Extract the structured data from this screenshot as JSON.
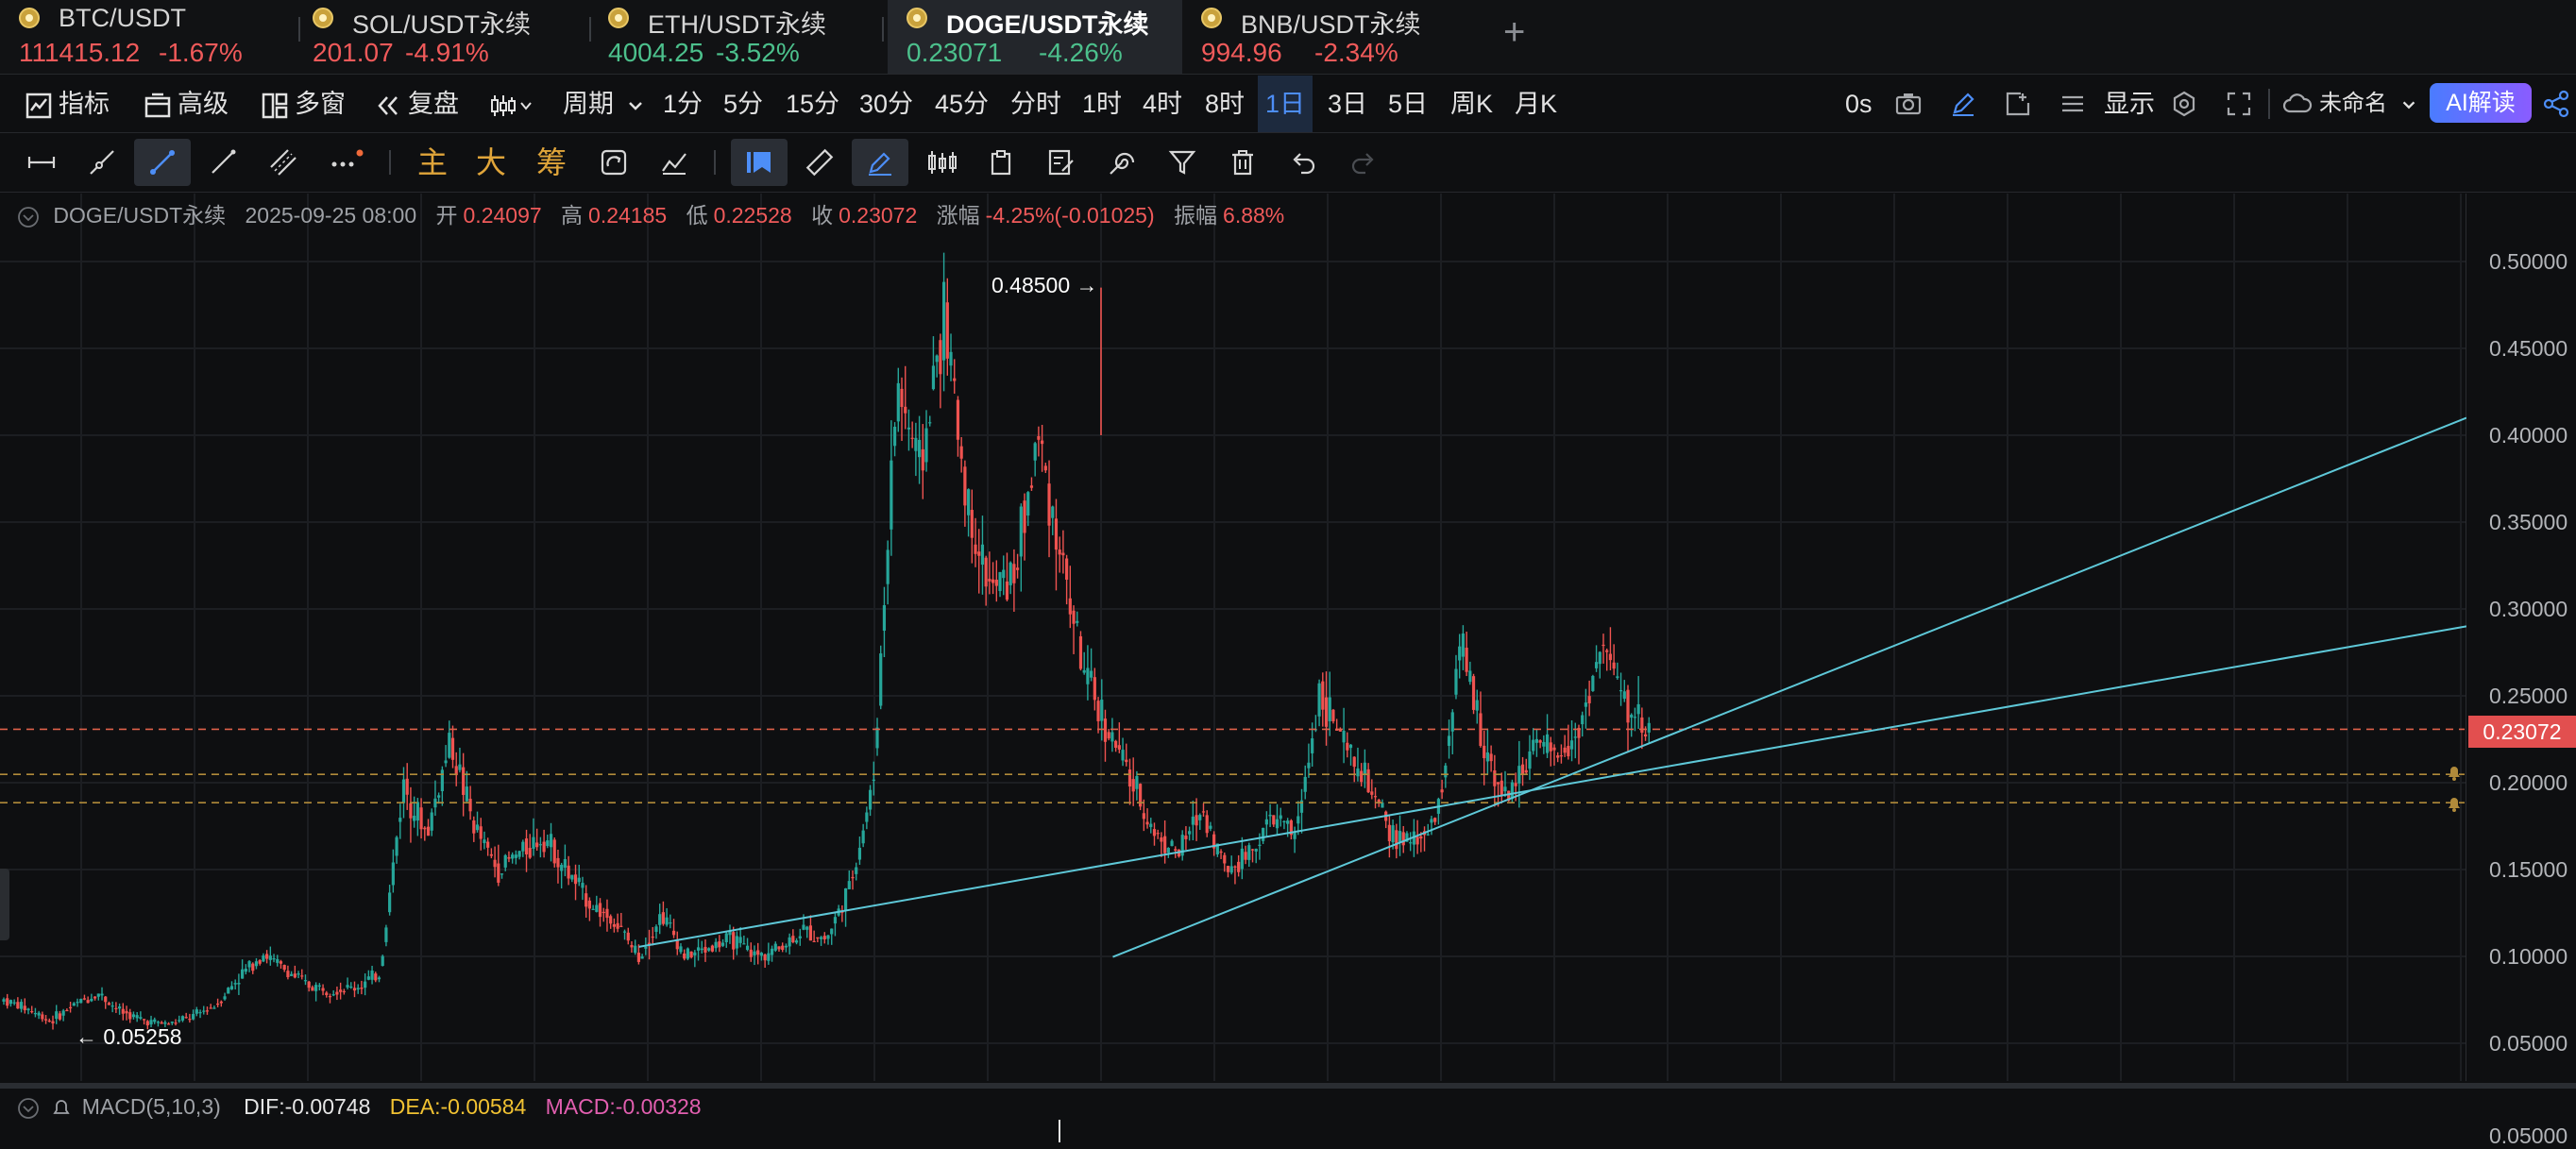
{
  "tickers": [
    {
      "name": "BTC/USDT",
      "price": "111415.12",
      "change": "-1.67%",
      "trend": "down",
      "active": false
    },
    {
      "name": "SOL/USDT永续",
      "price": "201.07",
      "change": "-4.91%",
      "trend": "down",
      "active": false
    },
    {
      "name": "ETH/USDT永续",
      "price": "4004.25",
      "change": "-3.52%",
      "trend": "up",
      "active": false
    },
    {
      "name": "DOGE/USDT永续",
      "price": "0.23071",
      "change": "-4.26%",
      "trend": "up",
      "active": true
    },
    {
      "name": "BNB/USDT永续",
      "price": "994.96",
      "change": "-2.34%",
      "trend": "down",
      "active": false
    }
  ],
  "add_tab_label": "+",
  "toolbar1": {
    "indicators": "指标",
    "advanced": "高级",
    "multi_window": "多窗",
    "replay": "复盘",
    "period": "周期",
    "intervals": [
      "1分",
      "5分",
      "15分",
      "30分",
      "45分",
      "分时",
      "1时",
      "4时",
      "8时",
      "1日",
      "3日",
      "5日",
      "周K",
      "月K"
    ],
    "selected_interval": "1日",
    "countdown": "0s",
    "display": "显示",
    "layout_name": "未命名",
    "ai_button": "AI解读"
  },
  "toolbar2": {
    "main": "主",
    "big": "大",
    "chips": "筹"
  },
  "info_bar": {
    "symbol": "DOGE/USDT永续",
    "datetime": "2025-09-25 08:00",
    "open_label": "开",
    "open": "0.24097",
    "high_label": "高",
    "high": "0.24185",
    "low_label": "低",
    "low": "0.22528",
    "close_label": "收",
    "close": "0.23072",
    "change_label": "涨幅",
    "change": "-4.25%(-0.01025)",
    "amplitude_label": "振幅",
    "amplitude": "6.88%"
  },
  "price_axis": {
    "ticks": [
      "0.50000",
      "0.45000",
      "0.40000",
      "0.35000",
      "0.30000",
      "0.25000",
      "0.20000",
      "0.15000",
      "0.10000",
      "0.05000"
    ],
    "last_price": "0.23072"
  },
  "annotations": {
    "high_marker": "0.48500 →",
    "low_marker": "← 0.05258"
  },
  "macd": {
    "label": "MACD(5,10,3)",
    "dif": "DIF:-0.00748",
    "dea": "DEA:-0.00584",
    "macd": "MACD:-0.00328",
    "axis_tick": "0.05000"
  },
  "chart_data": {
    "type": "candlestick",
    "ylim": [
      0.02,
      0.52
    ],
    "y_ticks": [
      0.05,
      0.1,
      0.15,
      0.2,
      0.25,
      0.3,
      0.35,
      0.4,
      0.45,
      0.5
    ],
    "grid": true,
    "series_close_approx": [
      0.075,
      0.07,
      0.063,
      0.072,
      0.079,
      0.068,
      0.063,
      0.061,
      0.065,
      0.072,
      0.088,
      0.102,
      0.092,
      0.083,
      0.081,
      0.082,
      0.09,
      0.2,
      0.17,
      0.225,
      0.175,
      0.15,
      0.16,
      0.17,
      0.148,
      0.13,
      0.12,
      0.1,
      0.125,
      0.1,
      0.105,
      0.11,
      0.1,
      0.105,
      0.115,
      0.11,
      0.14,
      0.2,
      0.43,
      0.38,
      0.47,
      0.36,
      0.31,
      0.32,
      0.4,
      0.33,
      0.26,
      0.23,
      0.2,
      0.17,
      0.16,
      0.185,
      0.15,
      0.16,
      0.18,
      0.17,
      0.255,
      0.22,
      0.2,
      0.17,
      0.165,
      0.18,
      0.28,
      0.22,
      0.19,
      0.22,
      0.215,
      0.23,
      0.28,
      0.245,
      0.23072
    ],
    "overall_high": 0.485,
    "overall_low": 0.05258,
    "horizontal_levels": [
      0.23072,
      0.2048,
      0.1885
    ],
    "channel_upper": [
      [
        0.2252,
        0.462
      ],
      [
        0.2906,
        0.617
      ]
    ],
    "channel_middle_from_upper_to_right": [
      0.4083
    ],
    "channel_lower": [
      [
        0.0997,
        0.432
      ],
      [
        0.2851,
        0.957
      ]
    ],
    "channel_line_right_edge": [
      0.41,
      0.29
    ]
  },
  "colors": {
    "up": "#26a69a",
    "down": "#ef5350",
    "channel": "#5ec8d8",
    "last_price_line": "#e0614a",
    "alert_line": "#b08a3a"
  }
}
